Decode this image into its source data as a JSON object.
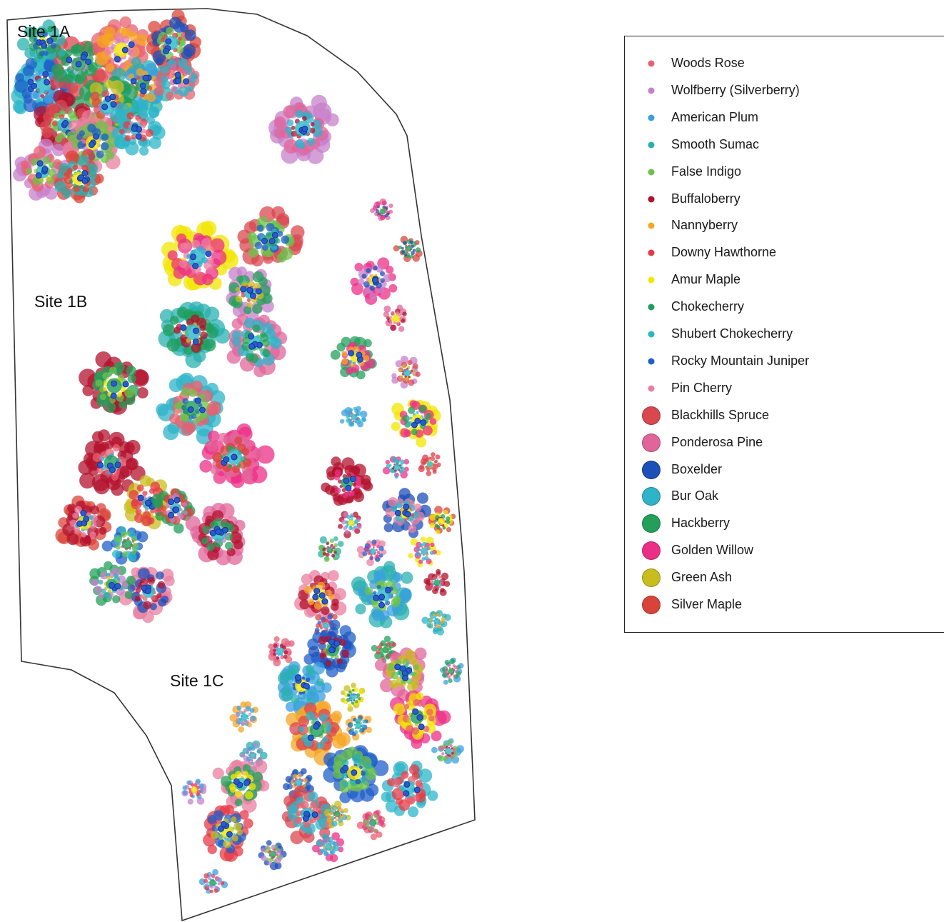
{
  "sites": [
    {
      "label": "Site 1A"
    },
    {
      "label": "Site 1B"
    },
    {
      "label": "Site 1C"
    }
  ],
  "legend": {
    "items": [
      {
        "label": "Woods Rose",
        "color": "#e8606e",
        "marker": "small"
      },
      {
        "label": "Wolfberry (Silverberry)",
        "color": "#c77fc9",
        "marker": "small"
      },
      {
        "label": "American Plum",
        "color": "#3aa0e0",
        "marker": "small"
      },
      {
        "label": "Smooth Sumac",
        "color": "#2ab0b0",
        "marker": "small"
      },
      {
        "label": "False Indigo",
        "color": "#6cc24a",
        "marker": "small"
      },
      {
        "label": "Buffaloberry",
        "color": "#b3122e",
        "marker": "small"
      },
      {
        "label": "Nannyberry",
        "color": "#f5a623",
        "marker": "small"
      },
      {
        "label": "Downy Hawthorne",
        "color": "#e63946",
        "marker": "small"
      },
      {
        "label": "Amur Maple",
        "color": "#f2e600",
        "marker": "small"
      },
      {
        "label": "Chokecherry",
        "color": "#1f9e5a",
        "marker": "small"
      },
      {
        "label": "Shubert Chokecherry",
        "color": "#2bb6c8",
        "marker": "small"
      },
      {
        "label": "Rocky Mountain Juniper",
        "color": "#1f5fc8",
        "marker": "small"
      },
      {
        "label": "Pin Cherry",
        "color": "#ea7fa0",
        "marker": "small"
      },
      {
        "label": "Blackhills Spruce",
        "color": "#d9474f",
        "marker": "large"
      },
      {
        "label": "Ponderosa Pine",
        "color": "#e0669a",
        "marker": "large"
      },
      {
        "label": "Boxelder",
        "color": "#1d4fb8",
        "marker": "large"
      },
      {
        "label": "Bur Oak",
        "color": "#2fb3c8",
        "marker": "large"
      },
      {
        "label": "Hackberry",
        "color": "#22a05a",
        "marker": "large"
      },
      {
        "label": "Golden Willow",
        "color": "#ec2f86",
        "marker": "large"
      },
      {
        "label": "Green Ash",
        "color": "#c9bd1e",
        "marker": "large"
      },
      {
        "label": "Silver Maple",
        "color": "#d9443a",
        "marker": "large"
      }
    ]
  }
}
